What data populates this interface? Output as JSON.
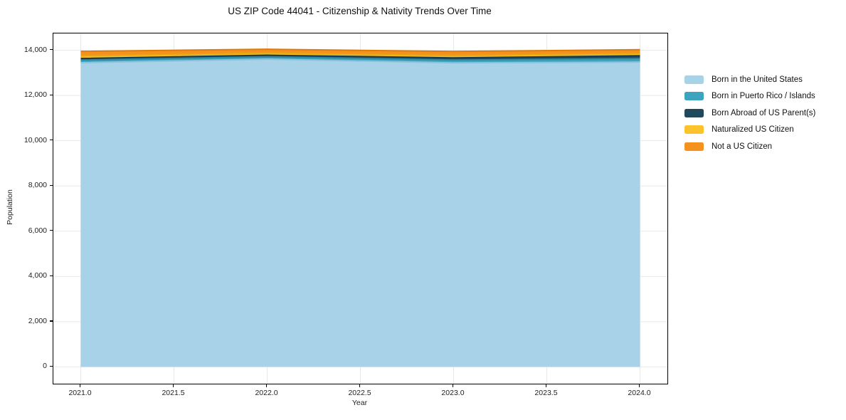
{
  "title": "US ZIP Code 44041 - Citizenship & Nativity Trends Over Time",
  "chart_data": {
    "type": "area",
    "stacked": true,
    "title": "US ZIP Code 44041 - Citizenship & Nativity Trends Over Time",
    "xlabel": "Year",
    "ylabel": "Population",
    "x": [
      2021,
      2022,
      2023,
      2024
    ],
    "series": [
      {
        "name": "Born in the United States",
        "color": "#A8D2E8",
        "edge": "#8CC0DC",
        "values": [
          13452,
          13608,
          13443,
          13478
        ]
      },
      {
        "name": "Born in Puerto Rico / Islands",
        "color": "#3CA4BE",
        "edge": "#2E8BA3",
        "values": [
          113,
          104,
          126,
          154
        ]
      },
      {
        "name": "Born Abroad of US Parent(s)",
        "color": "#20495C",
        "edge": "#1A3D4E",
        "values": [
          72,
          70,
          94,
          127
        ]
      },
      {
        "name": "Naturalized US Citizen",
        "color": "#FCC32D",
        "edge": "#E8A814",
        "values": [
          106,
          94,
          93,
          96
        ]
      },
      {
        "name": "Not a US Citizen",
        "color": "#F5921E",
        "edge": "#DD7B0C",
        "values": [
          208,
          168,
          190,
          171
        ]
      }
    ],
    "totals": [
      13951,
      14044,
      13946,
      14026
    ],
    "xlim": [
      2020.853,
      2024.147
    ],
    "ylim": [
      -742,
      14742
    ],
    "xticks": {
      "values": [
        2021.0,
        2021.5,
        2022.0,
        2022.5,
        2023.0,
        2023.5,
        2024.0
      ],
      "labels": [
        "2021.0",
        "2021.5",
        "2022.0",
        "2022.5",
        "2023.0",
        "2023.5",
        "2024.0"
      ]
    },
    "yticks": {
      "values": [
        0,
        2000,
        4000,
        6000,
        8000,
        10000,
        12000,
        14000
      ],
      "labels": [
        "0",
        "2,000",
        "4,000",
        "6,000",
        "8,000",
        "10,000",
        "12,000",
        "14,000"
      ]
    },
    "grid": true,
    "grid_color": "#e8e8e8",
    "legend_position": "outside-right",
    "background": "#ffffff"
  }
}
